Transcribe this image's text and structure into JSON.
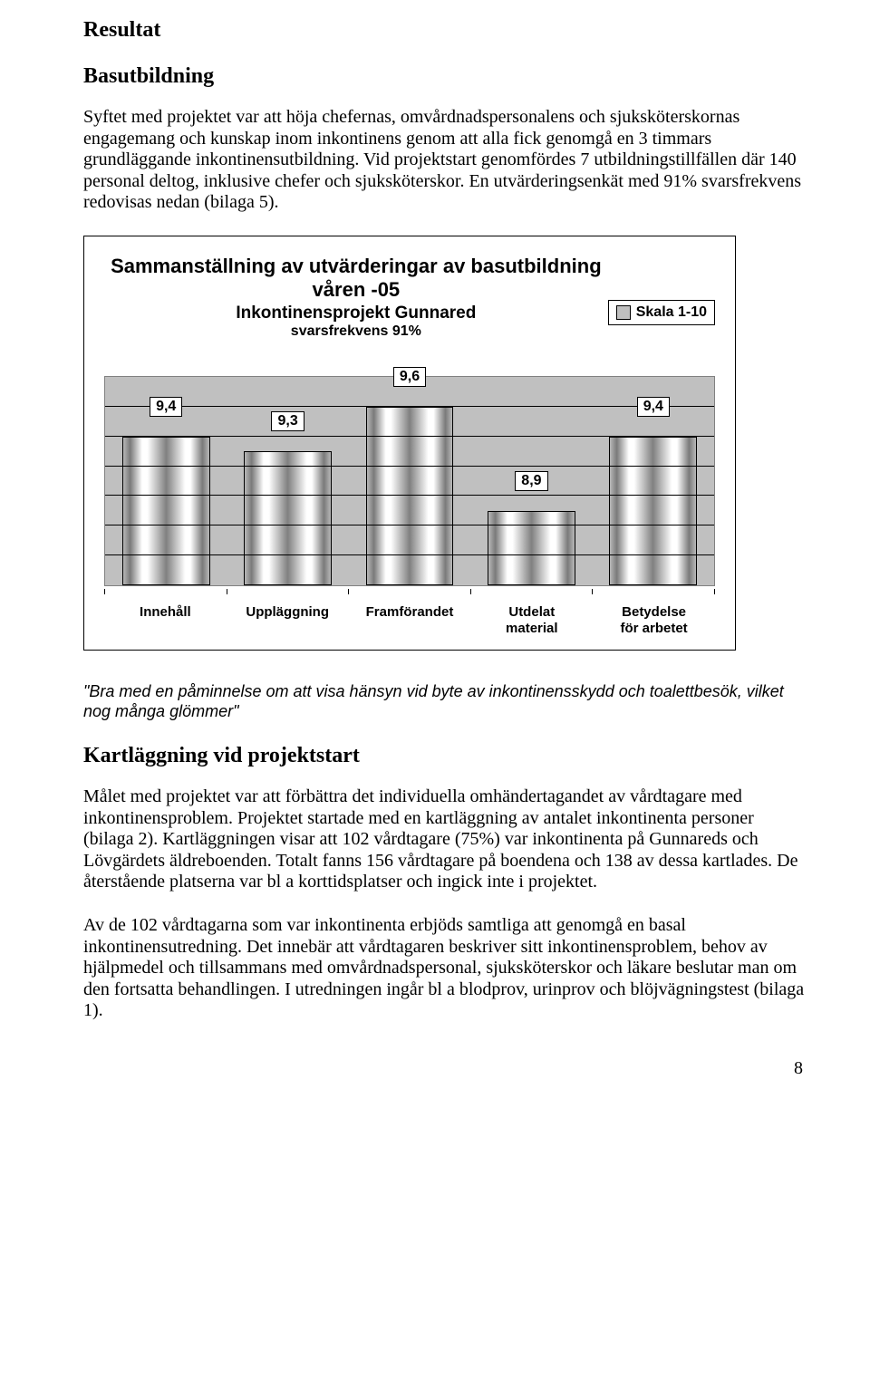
{
  "doc": {
    "h1": "Resultat",
    "h2a": "Basutbildning",
    "p1": "Syftet med projektet var att höja chefernas, omvårdnadspersonalens och sjuksköterskornas engagemang och kunskap inom inkontinens genom att alla fick genomgå en 3 timmars grundläggande inkontinensutbildning. Vid projektstart genomfördes 7 utbildningstillfällen där 140 personal deltog, inklusive chefer och sjuksköterskor. En utvärderingsenkät med 91% svarsfrekvens redovisas nedan (bilaga 5).",
    "quote": "\"Bra med en påminnelse om att visa hänsyn vid byte av inkontinensskydd och toalettbesök, vilket nog många glömmer\"",
    "h2b": "Kartläggning vid projektstart",
    "p2": "Målet med projektet var att förbättra det individuella omhändertagandet av vårdtagare med inkontinensproblem. Projektet startade med en kartläggning av antalet inkontinenta personer (bilaga 2). Kartläggningen visar att 102 vårdtagare (75%) var inkontinenta på Gunnareds och Lövgärdets äldreboenden. Totalt fanns 156 vårdtagare på boendena och 138 av dessa kartlades. De återstående platserna var bl a korttidsplatser och ingick inte i projektet.",
    "p3": "Av de 102 vårdtagarna som var inkontinenta erbjöds samtliga att genomgå en basal inkontinensutredning. Det innebär att vårdtagaren beskriver sitt inkontinensproblem, behov av hjälpmedel och tillsammans med omvårdnadspersonal, sjuksköterskor och läkare beslutar man om den fortsatta behandlingen. I utredningen ingår bl a blodprov, urinprov och blöjvägningstest (bilaga 1).",
    "page_number": "8"
  },
  "chart": {
    "type": "bar",
    "title_line1": "Sammanställning av utvärderingar av basutbildning",
    "title_line2": "våren -05",
    "title_line3": "Inkontinensprojekt Gunnared",
    "title_line4": "svarsfrekvens 91%",
    "legend_label": "Skala 1-10",
    "y_min": 8.4,
    "y_max": 9.8,
    "y_gridlines": [
      8.6,
      8.8,
      9.0,
      9.2,
      9.4,
      9.6
    ],
    "plot_bg": "#c0c0c0",
    "grid_color": "#000000",
    "bar_border": "#000000",
    "categories": [
      {
        "label": "Innehåll",
        "value": 9.4,
        "value_text": "9,4"
      },
      {
        "label": "Uppläggning",
        "value": 9.3,
        "value_text": "9,3"
      },
      {
        "label": "Framförandet",
        "value": 9.6,
        "value_text": "9,6"
      },
      {
        "label": "Utdelat material",
        "value": 8.9,
        "value_text": "8,9"
      },
      {
        "label": "Betydelse för arbetet",
        "value": 9.4,
        "value_text": "9,4"
      }
    ]
  }
}
